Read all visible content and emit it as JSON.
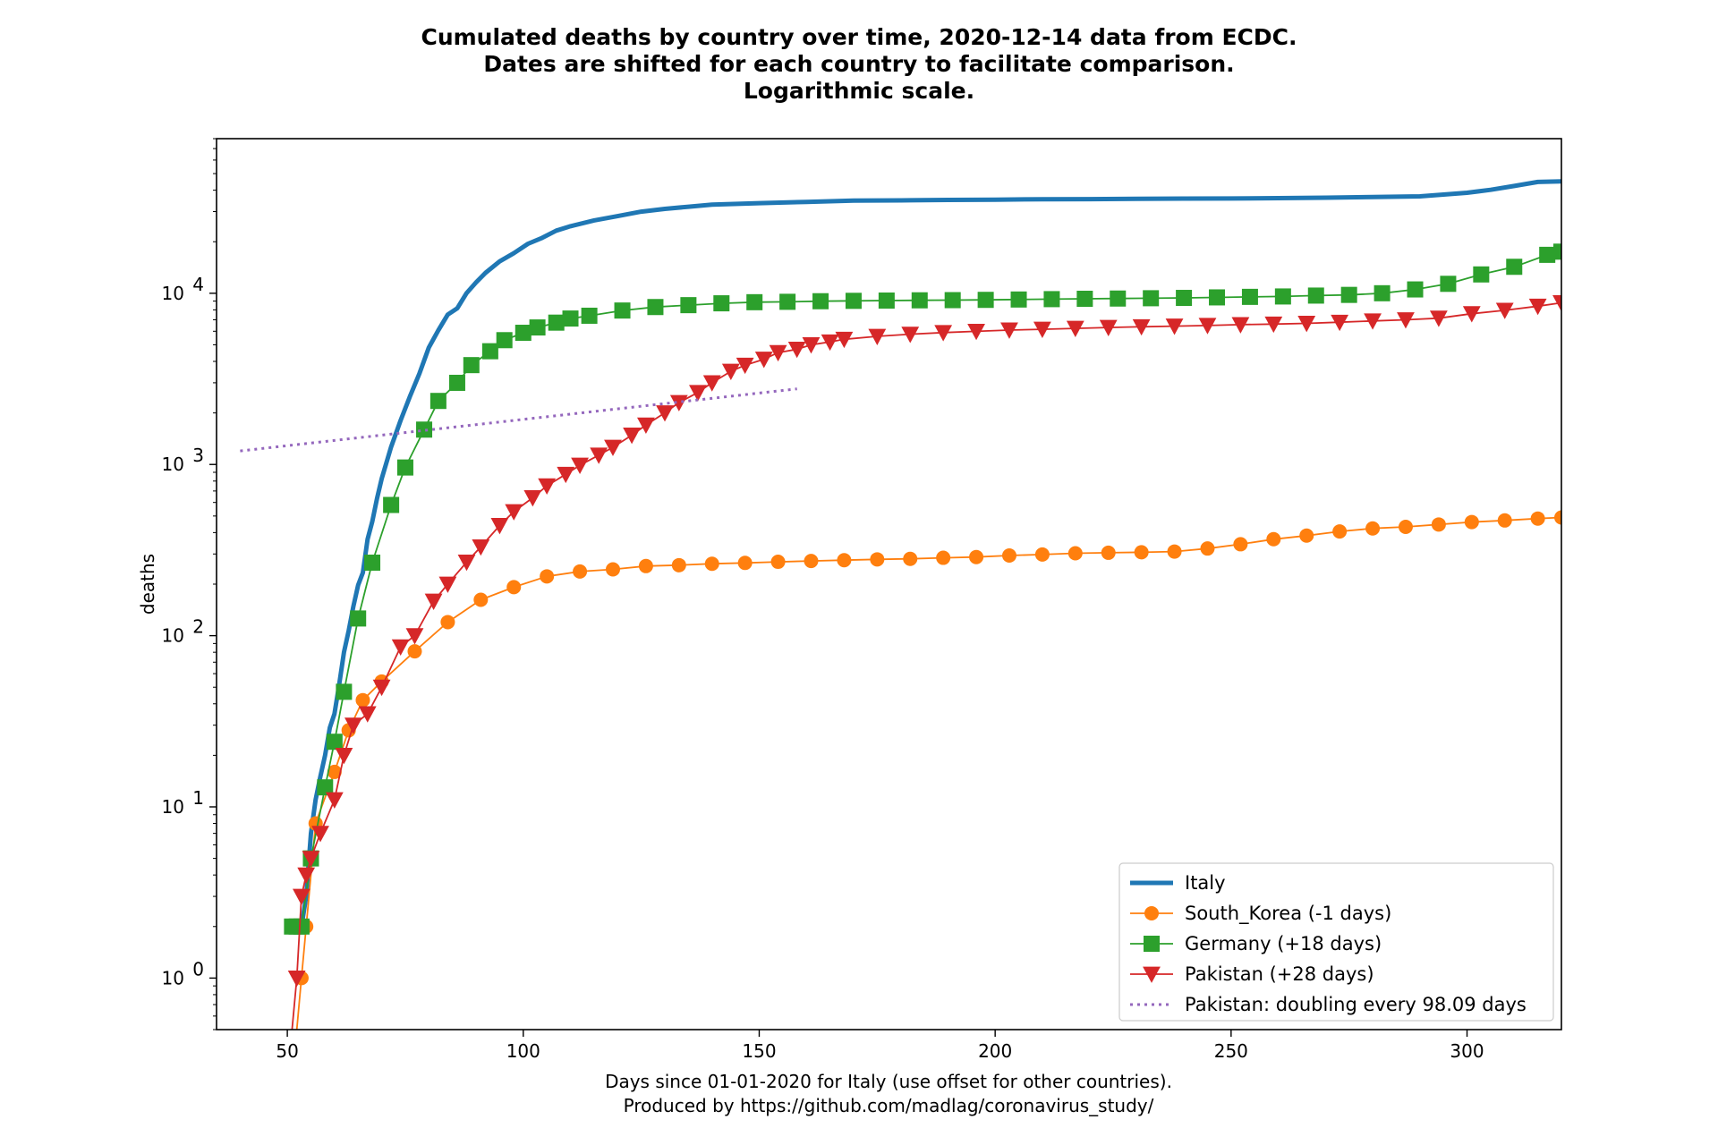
{
  "chart_data": {
    "type": "line",
    "title_lines": [
      "Cumulated deaths by country over time, 2020-12-14 data from ECDC.",
      "Dates are shifted for each country to facilitate comparison.",
      "Logarithmic scale."
    ],
    "xlabel_lines": [
      "Days since 01-01-2020 for Italy (use offset for other countries).",
      "Produced by https://github.com/madlag/coronavirus_study/"
    ],
    "ylabel": "deaths",
    "yscale": "log",
    "xlim": [
      35,
      320
    ],
    "ylim": [
      0.5,
      80000
    ],
    "xticks": [
      50,
      100,
      150,
      200,
      250,
      300
    ],
    "xtick_labels": [
      "50",
      "100",
      "150",
      "200",
      "250",
      "300"
    ],
    "yticks": [
      1,
      10,
      100,
      1000,
      10000
    ],
    "ytick_labels": [
      {
        "base": "10",
        "exp": "0"
      },
      {
        "base": "10",
        "exp": "1"
      },
      {
        "base": "10",
        "exp": "2"
      },
      {
        "base": "10",
        "exp": "3"
      },
      {
        "base": "10",
        "exp": "4"
      }
    ],
    "grid": false,
    "legend_position": "bottom-right",
    "series": [
      {
        "name": "Italy",
        "color": "#1f77b4",
        "marker": "none",
        "style": "solid-thick",
        "x": [
          53,
          54,
          55,
          56,
          57,
          58,
          59,
          60,
          61,
          62,
          63,
          64,
          65,
          66,
          67,
          68,
          69,
          70,
          72,
          74,
          76,
          78,
          80,
          82,
          84,
          86,
          88,
          90,
          92,
          95,
          98,
          101,
          104,
          107,
          110,
          115,
          120,
          125,
          130,
          135,
          140,
          150,
          160,
          170,
          180,
          190,
          200,
          210,
          220,
          230,
          240,
          250,
          260,
          270,
          280,
          290,
          295,
          300,
          305,
          310,
          315,
          320
        ],
        "y": [
          2,
          3,
          7,
          11,
          15,
          20,
          29,
          35,
          52,
          80,
          107,
          148,
          197,
          233,
          366,
          463,
          631,
          827,
          1266,
          1809,
          2503,
          3405,
          4825,
          6077,
          7503,
          8165,
          10023,
          11591,
          13155,
          15362,
          17127,
          19468,
          21067,
          23227,
          24648,
          26644,
          28236,
          29958,
          31106,
          32007,
          32955,
          33601,
          34167,
          34744,
          34899,
          35097,
          35225,
          35427,
          35483,
          35587,
          35738,
          35758,
          35941,
          36140,
          36474,
          36832,
          37700,
          38618,
          40192,
          42330,
          44683,
          45000
        ]
      },
      {
        "name": "South_Korea (-1 days)",
        "color": "#ff7f0e",
        "marker": "circle",
        "x": [
          52,
          53,
          54,
          56,
          60,
          63,
          66,
          70,
          77,
          84,
          91,
          98,
          105,
          112,
          119,
          126,
          133,
          140,
          147,
          154,
          161,
          168,
          175,
          182,
          189,
          196,
          203,
          210,
          217,
          224,
          231,
          238,
          245,
          252,
          259,
          266,
          273,
          280,
          287,
          294,
          301,
          308,
          315,
          320
        ],
        "y": [
          0.5,
          1,
          2,
          8,
          16,
          28,
          42,
          54,
          81,
          120,
          162,
          192,
          222,
          237,
          244,
          255,
          258,
          263,
          266,
          270,
          273,
          276,
          279,
          281,
          285,
          288,
          294,
          298,
          303,
          305,
          307,
          310,
          323,
          342,
          366,
          384,
          406,
          423,
          432,
          446,
          461,
          471,
          483,
          490
        ]
      },
      {
        "name": "Germany (+18 days)",
        "color": "#2ca02c",
        "marker": "square",
        "x": [
          51,
          52,
          53,
          55,
          58,
          60,
          62,
          65,
          68,
          72,
          75,
          79,
          82,
          86,
          89,
          93,
          96,
          100,
          103,
          107,
          110,
          114,
          121,
          128,
          135,
          142,
          149,
          156,
          163,
          170,
          177,
          184,
          191,
          198,
          205,
          212,
          219,
          226,
          233,
          240,
          247,
          254,
          261,
          268,
          275,
          282,
          289,
          296,
          303,
          310,
          317,
          320
        ],
        "y": [
          2,
          2,
          2,
          5,
          13,
          24,
          47,
          126,
          267,
          580,
          960,
          1598,
          2350,
          2998,
          3804,
          4586,
          5321,
          5877,
          6314,
          6736,
          7119,
          7392,
          7928,
          8309,
          8522,
          8736,
          8867,
          8914,
          8985,
          9032,
          9064,
          9095,
          9117,
          9149,
          9195,
          9240,
          9285,
          9314,
          9353,
          9395,
          9460,
          9527,
          9578,
          9692,
          9783,
          10003,
          10529,
          11352,
          12884,
          14275,
          16766,
          17500
        ]
      },
      {
        "name": "Pakistan (+28 days)",
        "color": "#d62728",
        "marker": "triangle-down",
        "x": [
          51,
          52,
          53,
          54,
          55,
          57,
          60,
          62,
          64,
          67,
          70,
          74,
          77,
          81,
          84,
          88,
          91,
          95,
          98,
          102,
          105,
          109,
          112,
          116,
          119,
          123,
          126,
          130,
          133,
          137,
          140,
          144,
          147,
          151,
          154,
          158,
          161,
          165,
          168,
          175,
          182,
          189,
          196,
          203,
          210,
          217,
          224,
          231,
          238,
          245,
          252,
          259,
          266,
          273,
          280,
          287,
          294,
          301,
          308,
          315,
          320
        ],
        "y": [
          0.5,
          1,
          3,
          4,
          5,
          7,
          11,
          20,
          30,
          35,
          50,
          86,
          100,
          159,
          200,
          269,
          330,
          440,
          530,
          639,
          750,
          876,
          990,
          1133,
          1260,
          1483,
          1700,
          2002,
          2300,
          2632,
          3000,
          3501,
          3800,
          4118,
          4500,
          4712,
          5000,
          5197,
          5386,
          5599,
          5763,
          5895,
          5992,
          6097,
          6162,
          6238,
          6312,
          6373,
          6426,
          6484,
          6555,
          6610,
          6672,
          6772,
          6893,
          7000,
          7150,
          7600,
          7950,
          8400,
          8800
        ]
      },
      {
        "name": "Pakistan: doubling every 98.09 days",
        "color": "#9467bd",
        "marker": "none",
        "style": "dotted",
        "x": [
          40,
          158
        ],
        "y": [
          1200,
          2766
        ]
      }
    ]
  }
}
